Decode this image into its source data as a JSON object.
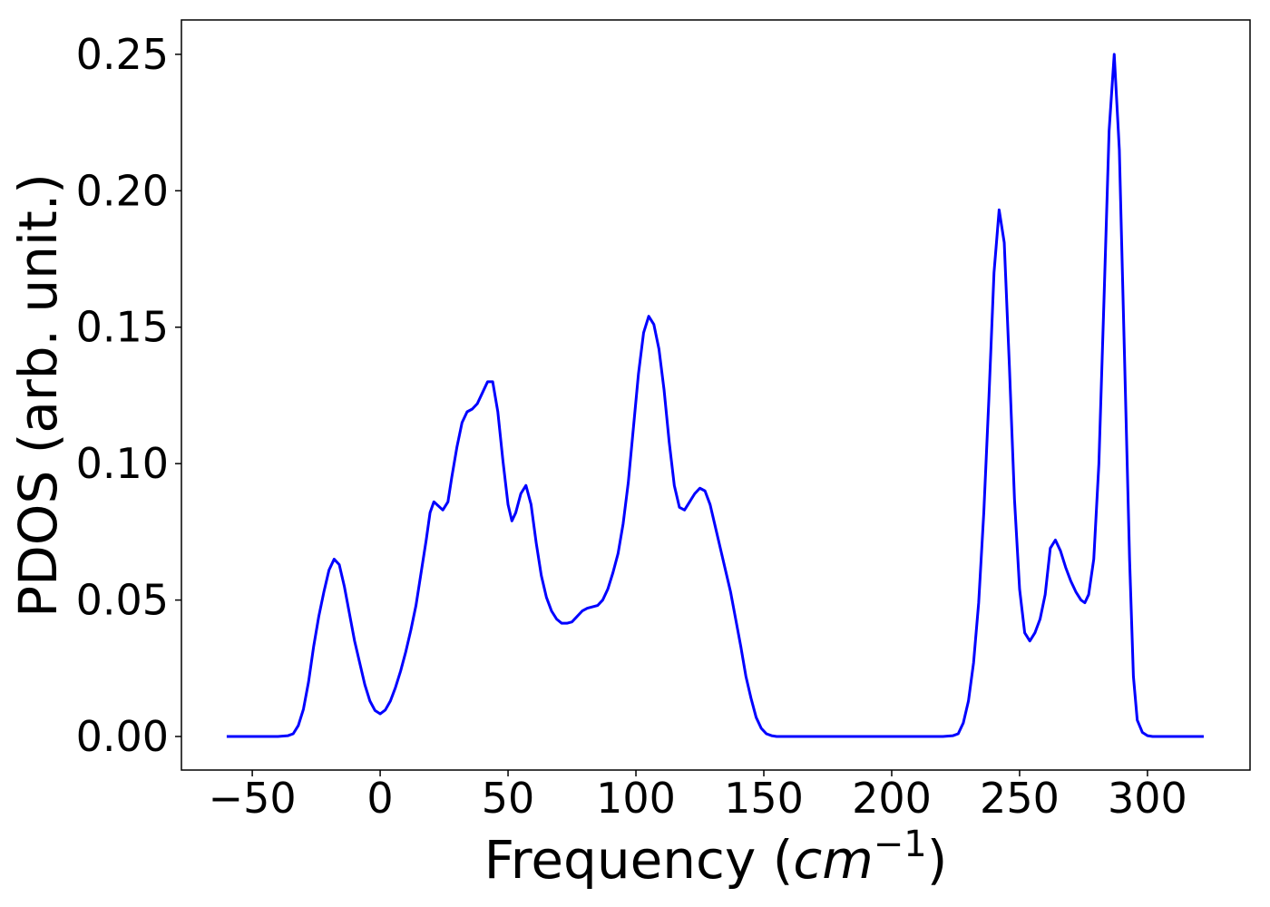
{
  "chart_data": {
    "type": "line",
    "xlabel": [
      "Frequency (",
      "cm",
      "−1",
      ")"
    ],
    "ylabel": "PDOS (arb. unit.)",
    "xlim": [
      -77.7,
      340.1
    ],
    "ylim": [
      -0.0123,
      0.2626
    ],
    "xticks": [
      {
        "value": -50,
        "label": "−50"
      },
      0,
      50,
      100,
      150,
      200,
      250,
      300
    ],
    "yticks": [
      {
        "value": 0,
        "label": "0.00"
      },
      {
        "value": 0.05,
        "label": "0.05"
      },
      {
        "value": 0.1,
        "label": "0.10"
      },
      {
        "value": 0.15,
        "label": "0.15"
      },
      {
        "value": 0.2,
        "label": "0.20"
      },
      {
        "value": 0.25,
        "label": "0.25"
      }
    ],
    "grid": false,
    "series": [
      {
        "name": "PDOS",
        "color": "#0000ff",
        "x": [
          -60,
          -40,
          -36,
          -34,
          -32,
          -30,
          -28,
          -26,
          -24,
          -22,
          -20,
          -18,
          -16,
          -14,
          -12,
          -10,
          -8,
          -6,
          -4,
          -2,
          0,
          2,
          4,
          6,
          8,
          10,
          12,
          14,
          16,
          18,
          19.5,
          21,
          24.5,
          26.5,
          28,
          30,
          32,
          34,
          36,
          38,
          40,
          42,
          44,
          46,
          48,
          50,
          51.5,
          53,
          55,
          57,
          59,
          61,
          63,
          65,
          67,
          69,
          71,
          73,
          75,
          77,
          79,
          81,
          83,
          85,
          87,
          89,
          91,
          93,
          95,
          97,
          99,
          101,
          103,
          105,
          107,
          109,
          111,
          113,
          115,
          117,
          119,
          121,
          123,
          125,
          127,
          129,
          131,
          133,
          135,
          137,
          139,
          141,
          143,
          145,
          147,
          149,
          151,
          153,
          155,
          220,
          224,
          226,
          228,
          230,
          232,
          234,
          236,
          238,
          240,
          242,
          244,
          246,
          248,
          250,
          252,
          254,
          256,
          258,
          260,
          262,
          264,
          266,
          268,
          270,
          272,
          274,
          275.5,
          277,
          279,
          281,
          283,
          285,
          287,
          289,
          291,
          293,
          294.5,
          296,
          298,
          300,
          302,
          322
        ],
        "values": [
          0,
          0,
          0.0003,
          0.001,
          0.004,
          0.01,
          0.02,
          0.033,
          0.044,
          0.053,
          0.061,
          0.065,
          0.063,
          0.055,
          0.045,
          0.035,
          0.027,
          0.019,
          0.013,
          0.0095,
          0.0083,
          0.0097,
          0.013,
          0.018,
          0.024,
          0.031,
          0.039,
          0.048,
          0.06,
          0.072,
          0.082,
          0.086,
          0.083,
          0.086,
          0.095,
          0.106,
          0.115,
          0.119,
          0.12,
          0.122,
          0.126,
          0.13,
          0.13,
          0.119,
          0.101,
          0.085,
          0.079,
          0.082,
          0.089,
          0.092,
          0.085,
          0.071,
          0.059,
          0.051,
          0.046,
          0.043,
          0.0415,
          0.0415,
          0.042,
          0.044,
          0.046,
          0.047,
          0.0475,
          0.048,
          0.05,
          0.054,
          0.06,
          0.067,
          0.078,
          0.093,
          0.113,
          0.133,
          0.148,
          0.154,
          0.151,
          0.142,
          0.127,
          0.108,
          0.092,
          0.084,
          0.083,
          0.086,
          0.089,
          0.091,
          0.09,
          0.085,
          0.077,
          0.069,
          0.061,
          0.053,
          0.043,
          0.033,
          0.022,
          0.014,
          0.007,
          0.003,
          0.001,
          0.0003,
          0,
          0,
          0.0003,
          0.001,
          0.005,
          0.013,
          0.027,
          0.049,
          0.082,
          0.124,
          0.17,
          0.193,
          0.181,
          0.136,
          0.087,
          0.054,
          0.038,
          0.035,
          0.038,
          0.043,
          0.052,
          0.069,
          0.072,
          0.068,
          0.062,
          0.057,
          0.053,
          0.05,
          0.049,
          0.052,
          0.065,
          0.1,
          0.16,
          0.222,
          0.25,
          0.215,
          0.14,
          0.065,
          0.022,
          0.006,
          0.0015,
          0.0003,
          0,
          0
        ]
      }
    ]
  }
}
